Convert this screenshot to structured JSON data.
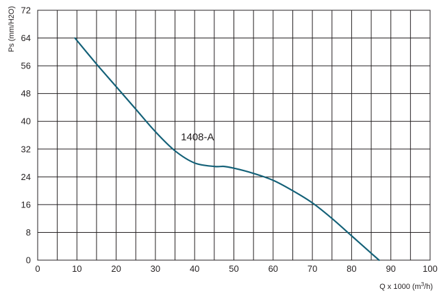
{
  "chart_data": {
    "type": "line",
    "ylabel": "Ps  (mm/H2O)",
    "xlabel_main": "Q x 1000 (m",
    "xlabel_sup": "3",
    "xlabel_end": "/h)",
    "xlim": [
      0,
      100
    ],
    "ylim": [
      0,
      72
    ],
    "x_ticks": [
      0,
      10,
      20,
      30,
      40,
      50,
      60,
      70,
      80,
      90,
      100
    ],
    "y_ticks": [
      0,
      8,
      16,
      24,
      32,
      40,
      48,
      56,
      64,
      72
    ],
    "grid": true,
    "colors": {
      "curve": "#146178",
      "grid": "#231f20"
    },
    "series": [
      {
        "name": "1408-A",
        "x": [
          9.5,
          15,
          20,
          25,
          30,
          35,
          40,
          45,
          47.5,
          50,
          55,
          60,
          65,
          70,
          75,
          80,
          85,
          87
        ],
        "y": [
          64,
          56.5,
          50,
          43.5,
          37,
          31.5,
          28,
          27,
          27,
          26.5,
          25,
          23,
          20,
          16.5,
          12,
          7,
          2,
          0
        ]
      }
    ],
    "annotation": {
      "text": "1408-A",
      "x": 36.5,
      "y": 34.5
    }
  }
}
